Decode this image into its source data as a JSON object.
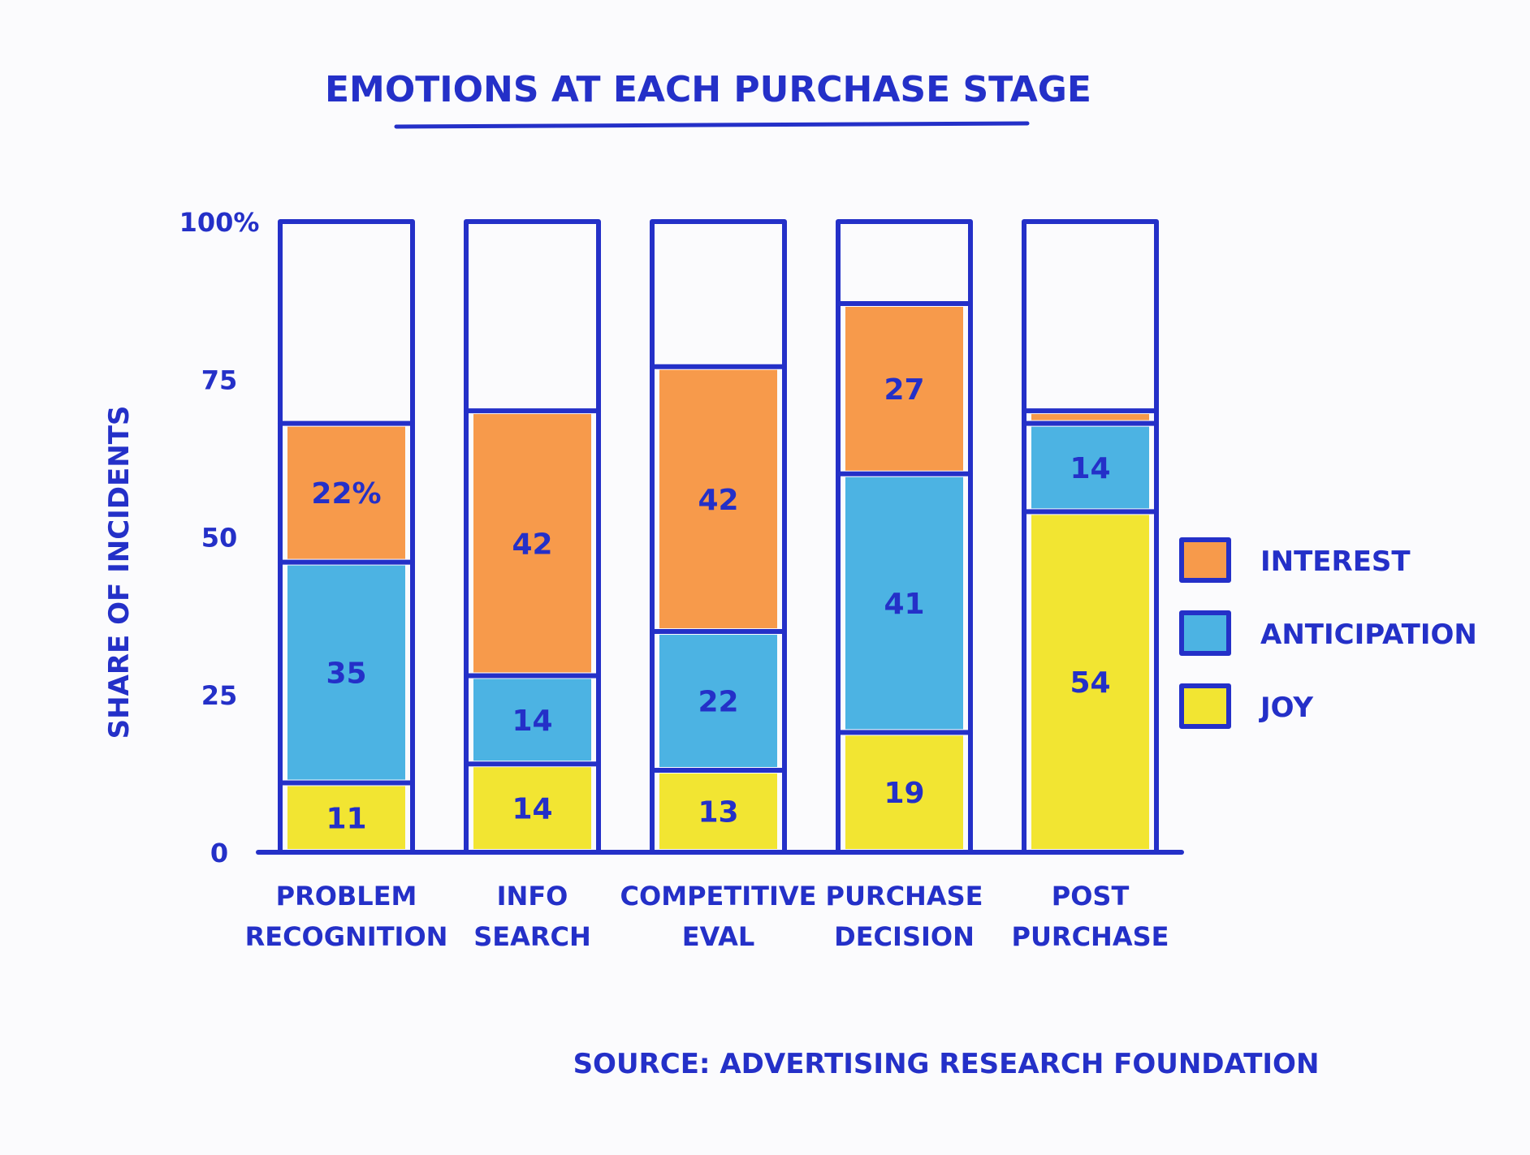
{
  "chart_data": {
    "type": "bar",
    "stacked": true,
    "title": "EMOTIONS AT EACH PURCHASE STAGE",
    "ylabel": "SHARE OF INCIDENTS",
    "xlabel": "",
    "ylim": [
      0,
      100
    ],
    "y_ticks": [
      "0",
      "25",
      "50",
      "75",
      "100%"
    ],
    "y_tick_values": [
      0,
      25,
      50,
      75,
      100
    ],
    "categories": [
      [
        "PROBLEM",
        "RECOGNITION"
      ],
      [
        "INFO",
        "SEARCH"
      ],
      [
        "COMPETITIVE",
        "EVAL"
      ],
      [
        "PURCHASE",
        "DECISION"
      ],
      [
        "POST",
        "PURCHASE"
      ]
    ],
    "series": [
      {
        "name": "JOY",
        "color": "#f2e532",
        "values": [
          11,
          14,
          13,
          19,
          54
        ],
        "labels": [
          "11",
          "14",
          "13",
          "19",
          "54"
        ]
      },
      {
        "name": "ANTICIPATION",
        "color": "#4cb3e3",
        "values": [
          35,
          14,
          22,
          41,
          14
        ],
        "labels": [
          "35",
          "14",
          "22",
          "41",
          "14"
        ]
      },
      {
        "name": "INTEREST",
        "color": "#f79a4b",
        "values": [
          22,
          42,
          42,
          27,
          2
        ],
        "labels": [
          "22%",
          "42",
          "42",
          "27",
          ""
        ]
      }
    ],
    "legend": {
      "position": "right",
      "items": [
        {
          "name": "INTEREST",
          "color": "#f79a4b"
        },
        {
          "name": "ANTICIPATION",
          "color": "#4cb3e3"
        },
        {
          "name": "JOY",
          "color": "#f2e532"
        }
      ]
    },
    "source": "SOURCE: ADVERTISING RESEARCH FOUNDATION",
    "ink_color": "#2430c8",
    "background": "#fbfbfd"
  }
}
